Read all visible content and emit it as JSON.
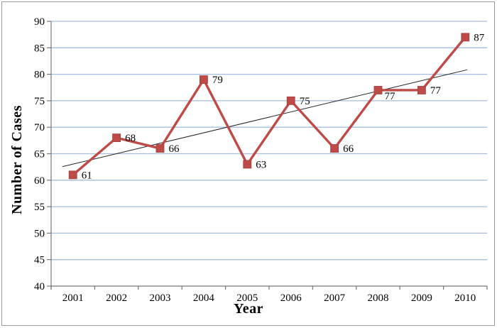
{
  "window": {
    "background": "#ffffff",
    "border_color": "#9a9a9a"
  },
  "chart_data": {
    "type": "line",
    "title": "",
    "xlabel": "Year",
    "ylabel": "Number of Cases",
    "categories": [
      "2001",
      "2002",
      "2003",
      "2004",
      "2005",
      "2006",
      "2007",
      "2008",
      "2009",
      "2010"
    ],
    "series": [
      {
        "name": "Number of Cases",
        "values": [
          61,
          68,
          66,
          79,
          63,
          75,
          66,
          77,
          77,
          87
        ],
        "color": "#BE4B48",
        "marker": "square",
        "marker_size": 11,
        "line_width": 3.4
      }
    ],
    "data_labels": {
      "visible": true,
      "color": "#000000",
      "default_offset": [
        12,
        5
      ],
      "offsets": {
        "7": [
          9,
          13
        ]
      }
    },
    "trendline": {
      "visible": true,
      "type": "linear",
      "color": "#262626",
      "width": 1
    },
    "ylim": [
      40,
      90
    ],
    "ytick_step": 5,
    "yticks": [
      40,
      45,
      50,
      55,
      60,
      65,
      70,
      75,
      80,
      85,
      90
    ],
    "grid": "horizontal",
    "gridline_color": "#A6BEDC",
    "axis_color": "#777777",
    "text_color": "#000000",
    "legend": "none"
  }
}
